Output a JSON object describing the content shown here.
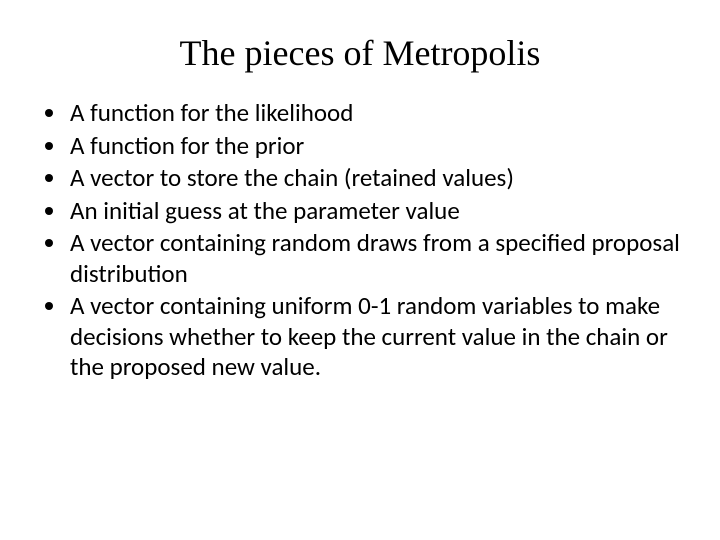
{
  "slide": {
    "title": "The pieces of Metropolis",
    "title_font": "Comic Sans MS",
    "title_fontsize": 36,
    "title_color": "#000000",
    "body_font": "Calibri",
    "body_fontsize": 25,
    "body_color": "#000000",
    "background_color": "#ffffff",
    "bullets": [
      "A function for the likelihood",
      "A function for the prior",
      "A vector to store the chain (retained values)",
      "An initial guess at the parameter value",
      "A vector containing random draws from a specified proposal distribution",
      "A vector containing uniform 0-1 random variables to make decisions whether to keep the current value in the chain or the proposed new value."
    ]
  }
}
